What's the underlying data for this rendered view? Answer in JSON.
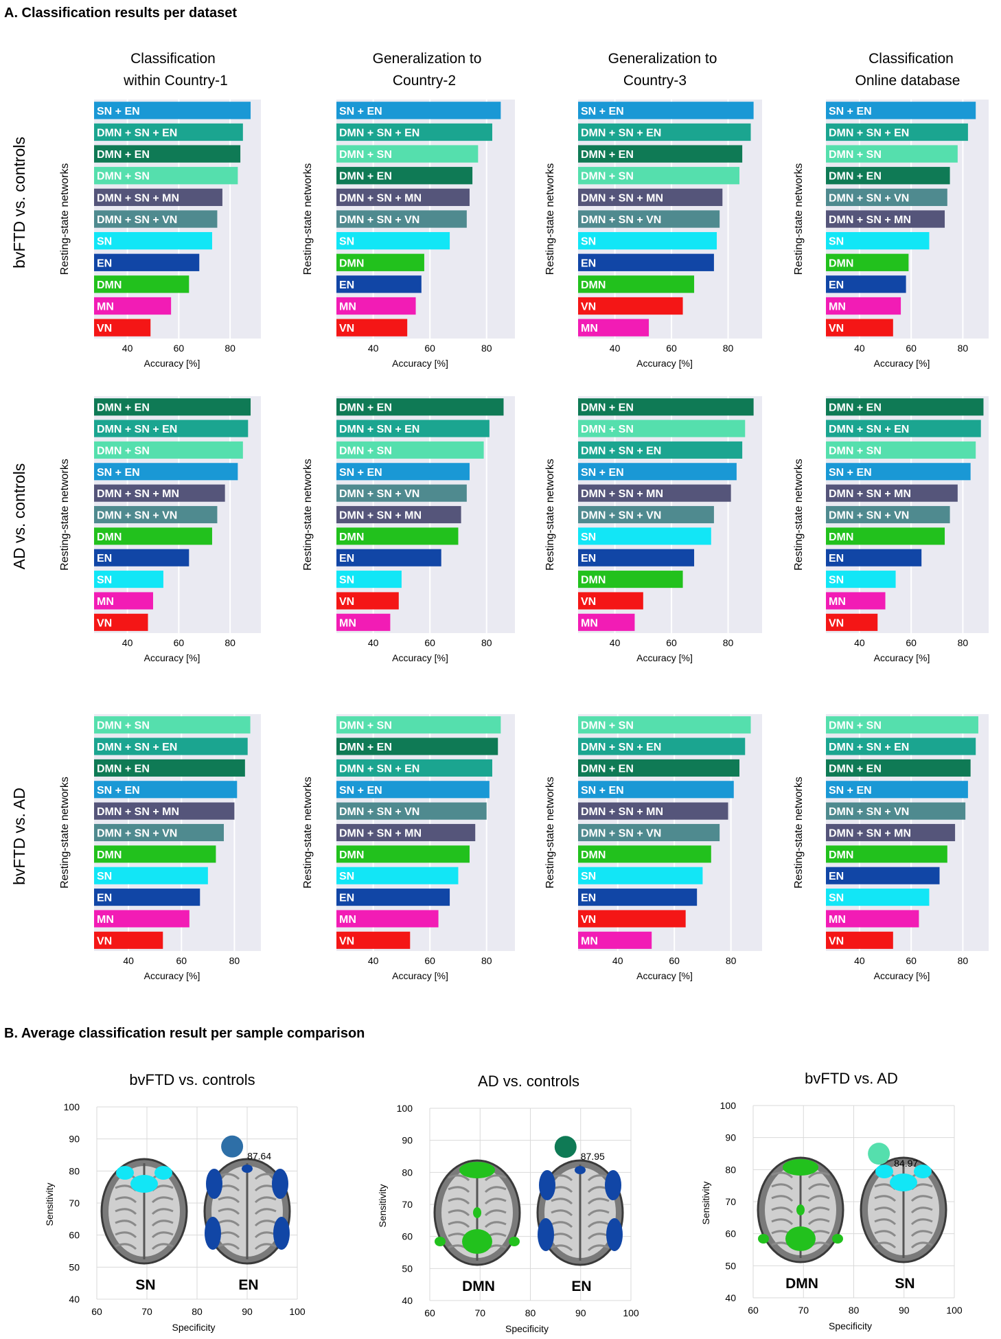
{
  "section_a_title": "A. Classification results per dataset",
  "section_b_title": "B. Average classification result per sample comparison",
  "panel_ylabel": "Resting-state networks",
  "panel_xlabel": "Accuracy [%]",
  "scatter_xlabel": "Specificity",
  "scatter_ylabel": "Sensitivity",
  "colors": {
    "SN + EN": "#1a98d5",
    "DMN + SN + EN": "#1ba590",
    "DMN + EN": "#0f7a55",
    "DMN + SN": "#55dfad",
    "DMN + SN + MN": "#55557a",
    "DMN + SN + VN": "#4f8a8f",
    "SN": "#12e6f6",
    "EN": "#1146a6",
    "DMN": "#22c11d",
    "MN": "#f21cb5",
    "VN": "#f41616"
  },
  "column_titles": [
    [
      "Classification",
      "within Country-1"
    ],
    [
      "Generalization to",
      "Country-2"
    ],
    [
      "Generalization to",
      "Country-3"
    ],
    [
      "Classification",
      "Online database"
    ]
  ],
  "row_titles": [
    "bvFTD vs. controls",
    "AD vs. controls",
    "bvFTD vs. AD"
  ],
  "chart_data": [
    {
      "type": "bar",
      "title": "bvFTD vs. controls — Classification within Country-1",
      "xlabel": "Accuracy [%]",
      "ylabel": "Resting-state networks",
      "xlim": [
        27,
        92
      ],
      "xticks": [
        40,
        60,
        80
      ],
      "categories": [
        "SN + EN",
        "DMN + SN + EN",
        "DMN + EN",
        "DMN + SN",
        "DMN + SN + MN",
        "DMN + SN + VN",
        "SN",
        "EN",
        "DMN",
        "MN",
        "VN"
      ],
      "values": [
        88,
        85,
        84,
        83,
        77,
        75,
        73,
        68,
        64,
        57,
        49
      ]
    },
    {
      "type": "bar",
      "title": "bvFTD vs. controls — Generalization to Country-2",
      "xlabel": "Accuracy [%]",
      "ylabel": "Resting-state networks",
      "xlim": [
        27,
        90
      ],
      "xticks": [
        40,
        60,
        80
      ],
      "categories": [
        "SN + EN",
        "DMN + SN + EN",
        "DMN + SN",
        "DMN + EN",
        "DMN + SN + MN",
        "DMN + SN + VN",
        "SN",
        "DMN",
        "EN",
        "MN",
        "VN"
      ],
      "values": [
        85,
        82,
        77,
        75,
        74,
        73,
        67,
        58,
        57,
        55,
        52
      ]
    },
    {
      "type": "bar",
      "title": "bvFTD vs. controls — Generalization to Country-3",
      "xlabel": "Accuracy [%]",
      "ylabel": "Resting-state networks",
      "xlim": [
        27,
        92
      ],
      "xticks": [
        40,
        60,
        80
      ],
      "categories": [
        "SN + EN",
        "DMN + SN + EN",
        "DMN + EN",
        "DMN + SN",
        "DMN + SN + MN",
        "DMN + SN + VN",
        "SN",
        "EN",
        "DMN",
        "VN",
        "MN"
      ],
      "values": [
        89,
        88,
        85,
        84,
        78,
        77,
        76,
        75,
        68,
        64,
        52
      ]
    },
    {
      "type": "bar",
      "title": "bvFTD vs. controls — Classification Online database",
      "xlabel": "Accuracy [%]",
      "ylabel": "Resting-state networks",
      "xlim": [
        27,
        90
      ],
      "xticks": [
        40,
        60,
        80
      ],
      "categories": [
        "SN + EN",
        "DMN + SN + EN",
        "DMN + SN",
        "DMN + EN",
        "DMN + SN + VN",
        "DMN + SN + MN",
        "SN",
        "DMN",
        "EN",
        "MN",
        "VN"
      ],
      "values": [
        85,
        82,
        78,
        75,
        74,
        73,
        67,
        59,
        58,
        56,
        53
      ]
    },
    {
      "type": "bar",
      "title": "AD vs. controls — Classification within Country-1",
      "xlabel": "Accuracy [%]",
      "ylabel": "Resting-state networks",
      "xlim": [
        27,
        92
      ],
      "xticks": [
        40,
        60,
        80
      ],
      "categories": [
        "DMN + EN",
        "DMN + SN + EN",
        "DMN + SN",
        "SN + EN",
        "DMN + SN + MN",
        "DMN + SN + VN",
        "DMN",
        "EN",
        "SN",
        "MN",
        "VN"
      ],
      "values": [
        88,
        87,
        85,
        83,
        78,
        75,
        73,
        64,
        54,
        50,
        48
      ]
    },
    {
      "type": "bar",
      "title": "AD vs. controls — Generalization to Country-2",
      "xlabel": "Accuracy [%]",
      "ylabel": "Resting-state networks",
      "xlim": [
        27,
        90
      ],
      "xticks": [
        40,
        60,
        80
      ],
      "categories": [
        "DMN + EN",
        "DMN + SN + EN",
        "DMN + SN",
        "SN + EN",
        "DMN + SN + VN",
        "DMN + SN + MN",
        "DMN",
        "EN",
        "SN",
        "VN",
        "MN"
      ],
      "values": [
        86,
        81,
        79,
        74,
        73,
        71,
        70,
        64,
        50,
        49,
        46
      ]
    },
    {
      "type": "bar",
      "title": "AD vs. controls — Generalization to Country-3",
      "xlabel": "Accuracy [%]",
      "ylabel": "Resting-state networks",
      "xlim": [
        27,
        92
      ],
      "xticks": [
        40,
        60,
        80
      ],
      "categories": [
        "DMN + EN",
        "DMN + SN",
        "DMN + SN + EN",
        "SN + EN",
        "DMN + SN + MN",
        "DMN + SN + VN",
        "SN",
        "EN",
        "DMN",
        "VN",
        "MN"
      ],
      "values": [
        89,
        86,
        85,
        83,
        81,
        75,
        74,
        68,
        64,
        50,
        47
      ]
    },
    {
      "type": "bar",
      "title": "AD vs. controls — Classification Online database",
      "xlabel": "Accuracy [%]",
      "ylabel": "Resting-state networks",
      "xlim": [
        27,
        90
      ],
      "xticks": [
        40,
        60,
        80
      ],
      "categories": [
        "DMN + EN",
        "DMN + SN + EN",
        "DMN + SN",
        "SN + EN",
        "DMN + SN + MN",
        "DMN + SN + VN",
        "DMN",
        "EN",
        "SN",
        "MN",
        "VN"
      ],
      "values": [
        88,
        87,
        85,
        83,
        78,
        75,
        73,
        64,
        54,
        50,
        47
      ]
    },
    {
      "type": "bar",
      "title": "bvFTD vs. AD — Classification within Country-1",
      "xlabel": "Accuracy [%]",
      "ylabel": "Resting-state networks",
      "xlim": [
        27,
        90
      ],
      "xticks": [
        40,
        60,
        80
      ],
      "categories": [
        "DMN + SN",
        "DMN + SN + EN",
        "DMN + EN",
        "SN + EN",
        "DMN + SN + MN",
        "DMN + SN + VN",
        "DMN",
        "SN",
        "EN",
        "MN",
        "VN"
      ],
      "values": [
        86,
        85,
        84,
        81,
        80,
        76,
        73,
        70,
        67,
        63,
        53
      ]
    },
    {
      "type": "bar",
      "title": "bvFTD vs. AD — Generalization to Country-2",
      "xlabel": "Accuracy [%]",
      "ylabel": "Resting-state networks",
      "xlim": [
        27,
        90
      ],
      "xticks": [
        40,
        60,
        80
      ],
      "categories": [
        "DMN + SN",
        "DMN + EN",
        "DMN + SN + EN",
        "SN + EN",
        "DMN + SN + VN",
        "DMN + SN + MN",
        "DMN",
        "SN",
        "EN",
        "MN",
        "VN"
      ],
      "values": [
        85,
        84,
        82,
        81,
        80,
        76,
        74,
        70,
        67,
        63,
        53
      ]
    },
    {
      "type": "bar",
      "title": "bvFTD vs. AD — Generalization to Country-3",
      "xlabel": "Accuracy [%]",
      "ylabel": "Resting-state networks",
      "xlim": [
        26,
        91
      ],
      "xticks": [
        40,
        60,
        80
      ],
      "categories": [
        "DMN + SN",
        "DMN + SN + EN",
        "DMN + EN",
        "SN + EN",
        "DMN + SN + MN",
        "DMN + SN + VN",
        "DMN",
        "SN",
        "EN",
        "VN",
        "MN"
      ],
      "values": [
        87,
        85,
        83,
        81,
        79,
        76,
        73,
        70,
        68,
        64,
        52
      ]
    },
    {
      "type": "bar",
      "title": "bvFTD vs. AD — Classification Online database",
      "xlabel": "Accuracy [%]",
      "ylabel": "Resting-state networks",
      "xlim": [
        27,
        90
      ],
      "xticks": [
        40,
        60,
        80
      ],
      "categories": [
        "DMN + SN",
        "DMN + SN + EN",
        "DMN + EN",
        "SN + EN",
        "DMN + SN + VN",
        "DMN + SN + MN",
        "DMN",
        "EN",
        "SN",
        "MN",
        "VN"
      ],
      "values": [
        86,
        85,
        83,
        82,
        81,
        77,
        74,
        71,
        67,
        63,
        53
      ]
    },
    {
      "type": "scatter",
      "title": "bvFTD vs. controls",
      "xlabel": "Specificity",
      "ylabel": "Sensitivity",
      "xlim": [
        60,
        100
      ],
      "ylim": [
        40,
        100
      ],
      "xticks": [
        60,
        70,
        80,
        90,
        100
      ],
      "yticks": [
        40,
        50,
        60,
        70,
        80,
        90,
        100
      ],
      "x": [
        87
      ],
      "y": [
        87.64
      ],
      "labels": [
        "87.64"
      ],
      "point_color": "#2e6fa7",
      "brain_labels": [
        "SN",
        "EN"
      ]
    },
    {
      "type": "scatter",
      "title": "AD vs. controls",
      "xlabel": "Specificity",
      "ylabel": "Sensitivity",
      "xlim": [
        60,
        100
      ],
      "ylim": [
        40,
        100
      ],
      "xticks": [
        60,
        70,
        80,
        90,
        100
      ],
      "yticks": [
        40,
        50,
        60,
        70,
        80,
        90,
        100
      ],
      "x": [
        87
      ],
      "y": [
        87.95
      ],
      "labels": [
        "87.95"
      ],
      "point_color": "#0f7a55",
      "brain_labels": [
        "DMN",
        "EN"
      ]
    },
    {
      "type": "scatter",
      "title": "bvFTD vs. AD",
      "xlabel": "Specificity",
      "ylabel": "Sensitivity",
      "xlim": [
        60,
        100
      ],
      "ylim": [
        40,
        100
      ],
      "xticks": [
        60,
        70,
        80,
        90,
        100
      ],
      "yticks": [
        40,
        50,
        60,
        70,
        80,
        90,
        100
      ],
      "x": [
        85
      ],
      "y": [
        84.97
      ],
      "labels": [
        "84.97"
      ],
      "point_color": "#55dfad",
      "brain_labels": [
        "DMN",
        "SN"
      ]
    }
  ]
}
